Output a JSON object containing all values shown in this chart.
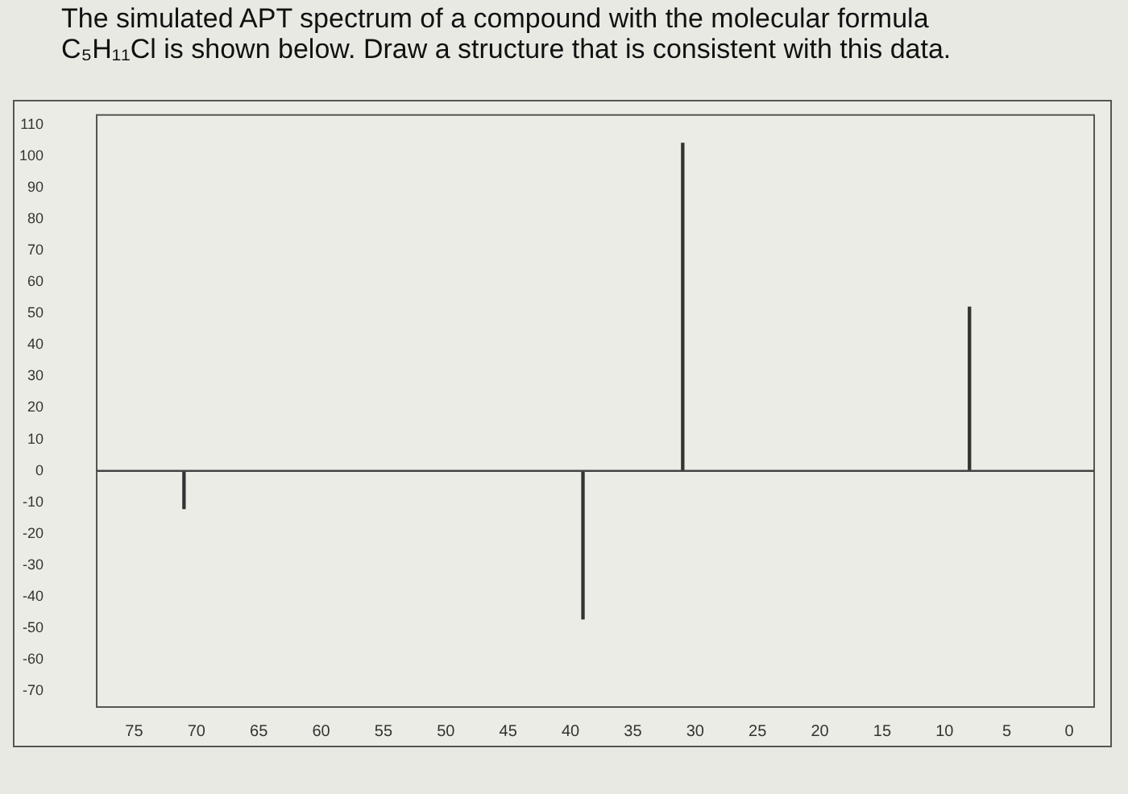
{
  "chart_data": {
    "type": "bar",
    "title": "The simulated APT spectrum of a compound with the molecular formula C₅H₁₁Cl is shown below. Draw a structure that is consistent with this data.",
    "x": [
      71,
      39,
      31,
      8
    ],
    "values": [
      -12,
      -47,
      104,
      52
    ],
    "color": "#333333",
    "xlim": [
      78,
      -2
    ],
    "xticks": [
      75,
      70,
      65,
      60,
      55,
      50,
      45,
      40,
      35,
      30,
      25,
      20,
      15,
      10,
      5,
      0
    ],
    "ylim": [
      -75,
      113
    ],
    "yticks": [
      110,
      100,
      90,
      80,
      70,
      60,
      50,
      40,
      30,
      20,
      10,
      0,
      -10,
      -20,
      -30,
      -40,
      -50,
      -60,
      -70
    ],
    "ref_lines": [
      {
        "axis": "y",
        "value": 0,
        "color": "#444444"
      }
    ],
    "grid": false,
    "legend": false
  }
}
